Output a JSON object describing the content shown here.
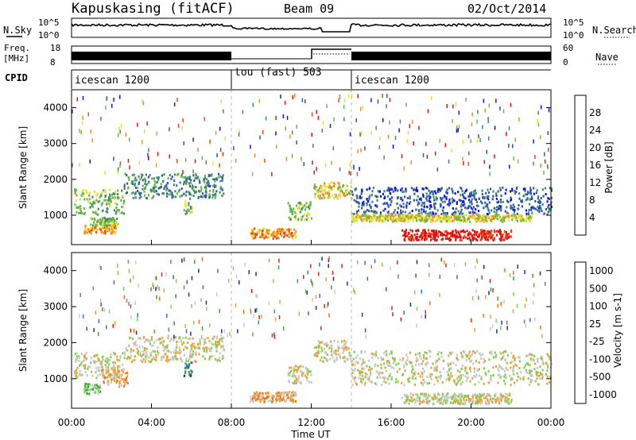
{
  "header": {
    "station": "Kapuskasing (fitACF)",
    "beam": "Beam 09",
    "date": "02/Oct/2014"
  },
  "top_panels": {
    "nsky_label": "N.Sky",
    "nsky_ticks": [
      "10^5",
      "10^0"
    ],
    "nsearch_label": "N.Search",
    "nsearch_ticks": [
      "10^5",
      "10^0"
    ],
    "freq_label": "Freq.",
    "freq_unit": "[MHz]",
    "freq_ticks": [
      "18",
      "8"
    ],
    "nave_label": "Nave",
    "nave_ticks": [
      "60",
      "0"
    ],
    "cpid_label": "CPID"
  },
  "cpid_segments": [
    {
      "label": "icescan 1200",
      "start": "00:00",
      "end": "08:00"
    },
    {
      "label": "tou (fast) 503",
      "start": "08:00",
      "end": "14:00"
    },
    {
      "label": "icescan 1200",
      "start": "14:00",
      "end": "24:00"
    }
  ],
  "x_axis": {
    "label": "Time UT",
    "ticks": [
      "00:00",
      "04:00",
      "08:00",
      "12:00",
      "16:00",
      "20:00",
      "00:00"
    ]
  },
  "chart_data": [
    {
      "type": "heatmap",
      "panel": "power",
      "ylabel": "Slant Range [km]",
      "yticks": [
        "1000",
        "2000",
        "3000",
        "4000"
      ],
      "ylim": [
        180,
        4500
      ],
      "xlim": [
        "00:00",
        "24:00"
      ],
      "colorbar_label": "Power [dB]",
      "colorbar_ticks": [
        "4",
        "8",
        "12",
        "16",
        "20",
        "24",
        "28"
      ],
      "colors": [
        "#1010e0",
        "#2e58a8",
        "#3e8a6a",
        "#68b84a",
        "#e8e030",
        "#f09020",
        "#e84818",
        "#e01010"
      ],
      "regions": [
        {
          "t0": 0.1,
          "t1": 2.6,
          "r0": 1050,
          "r1": 1750,
          "level": 3
        },
        {
          "t0": 0.6,
          "t1": 2.2,
          "r0": 520,
          "r1": 760,
          "level": 5
        },
        {
          "t0": 0.9,
          "t1": 2.3,
          "r0": 740,
          "r1": 960,
          "level": 3
        },
        {
          "t0": 2.6,
          "t1": 7.6,
          "r0": 1500,
          "r1": 2200,
          "level": 2
        },
        {
          "t0": 5.6,
          "t1": 6.0,
          "r0": 1050,
          "r1": 1500,
          "level": 3
        },
        {
          "t0": 8.9,
          "t1": 11.2,
          "r0": 380,
          "r1": 660,
          "level": 5
        },
        {
          "t0": 10.8,
          "t1": 12.0,
          "r0": 900,
          "r1": 1400,
          "level": 3
        },
        {
          "t0": 12.1,
          "t1": 14.0,
          "r0": 1500,
          "r1": 1950,
          "level": 4
        },
        {
          "t0": 14.0,
          "t1": 24.0,
          "r0": 1050,
          "r1": 1800,
          "level": 1
        },
        {
          "t0": 14.0,
          "t1": 23.0,
          "r0": 850,
          "r1": 1050,
          "level": 4
        },
        {
          "t0": 16.5,
          "t1": 22.0,
          "r0": 330,
          "r1": 620,
          "level": 7
        }
      ]
    },
    {
      "type": "heatmap",
      "panel": "velocity",
      "ylabel": "Slant Range [km]",
      "yticks": [
        "1000",
        "2000",
        "3000",
        "4000"
      ],
      "ylim": [
        180,
        4500
      ],
      "xlim": [
        "00:00",
        "24:00"
      ],
      "colorbar_label": "Velocity [m s-1]",
      "colorbar_ticks": [
        "1000",
        "500",
        "100",
        "25",
        "-25",
        "-100",
        "-500",
        "-1000"
      ],
      "colors": [
        "#1a2aa0",
        "#3a6ad0",
        "#3aa040",
        "#80d050",
        "#c8c8c8",
        "#f0a030",
        "#f07020",
        "#e02010"
      ],
      "regions": [
        {
          "t0": 0.1,
          "t1": 2.6,
          "r0": 1050,
          "r1": 1750,
          "level": 4
        },
        {
          "t0": 1.5,
          "t1": 2.8,
          "r0": 800,
          "r1": 1300,
          "level": 5
        },
        {
          "t0": 0.6,
          "t1": 1.4,
          "r0": 600,
          "r1": 900,
          "level": 3
        },
        {
          "t0": 2.6,
          "t1": 7.6,
          "r0": 1500,
          "r1": 2200,
          "level": 4
        },
        {
          "t0": 5.6,
          "t1": 6.0,
          "r0": 1100,
          "r1": 1500,
          "level": 1
        },
        {
          "t0": 8.9,
          "t1": 11.2,
          "r0": 380,
          "r1": 660,
          "level": 5
        },
        {
          "t0": 10.8,
          "t1": 12.0,
          "r0": 900,
          "r1": 1400,
          "level": 4
        },
        {
          "t0": 12.1,
          "t1": 14.0,
          "r0": 1500,
          "r1": 2100,
          "level": 4
        },
        {
          "t0": 14.0,
          "t1": 24.0,
          "r0": 850,
          "r1": 1800,
          "level": 4
        },
        {
          "t0": 16.5,
          "t1": 22.0,
          "r0": 330,
          "r1": 620,
          "level": 4
        }
      ]
    }
  ]
}
